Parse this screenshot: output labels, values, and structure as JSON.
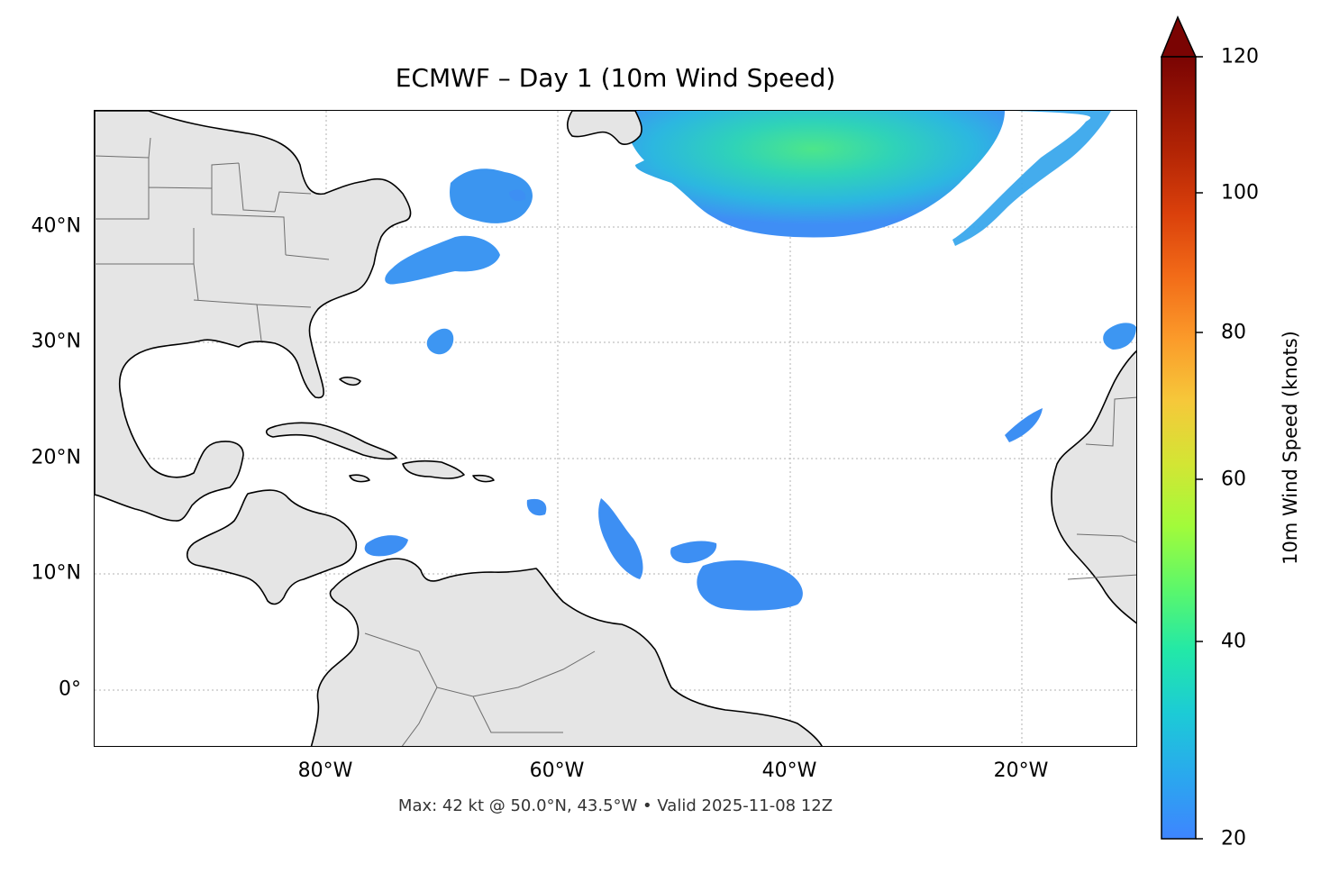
{
  "title": "ECMWF – Day 1 (10m Wind Speed)",
  "footer": "Max: 42 kt @ 50.0°N, 43.5°W • Valid 2025-11-08 12Z",
  "map": {
    "extent": {
      "lon": [
        -100,
        -10
      ],
      "lat": [
        -5,
        50
      ]
    },
    "land_color": "#e5e5e5",
    "gridlines": true,
    "lat_ticks": [
      "40°N",
      "30°N",
      "20°N",
      "10°N",
      "0°"
    ],
    "lon_ticks": [
      "80°W",
      "60°W",
      "40°W",
      "20°W"
    ]
  },
  "colorbar": {
    "label": "10m Wind Speed (knots)",
    "min": 20,
    "max": 120,
    "ticks": [
      "20",
      "40",
      "60",
      "80",
      "100",
      "120"
    ],
    "extend": "max",
    "colormap": "turbo"
  },
  "chart_data": {
    "type": "heatmap",
    "variable": "10m Wind Speed",
    "units": "knots",
    "max_value": 42,
    "max_location": {
      "lat": 50.0,
      "lon": -43.5
    },
    "valid": "2025-11-08 12Z",
    "wind_regions": [
      {
        "lat": 47,
        "lon": -42,
        "value": 30
      },
      {
        "lat": 45,
        "lon": -40,
        "value": 26
      },
      {
        "lat": 45,
        "lon": -20,
        "value": 24
      },
      {
        "lat": 43,
        "lon": -66,
        "value": 23
      },
      {
        "lat": 37,
        "lon": -69,
        "value": 22
      },
      {
        "lat": 31,
        "lon": -72,
        "value": 21
      },
      {
        "lat": 31,
        "lon": -14,
        "value": 21
      },
      {
        "lat": 13,
        "lon": -55,
        "value": 21
      },
      {
        "lat": 9,
        "lon": -42,
        "value": 22
      },
      {
        "lat": 12,
        "lon": -74,
        "value": 21
      }
    ]
  }
}
